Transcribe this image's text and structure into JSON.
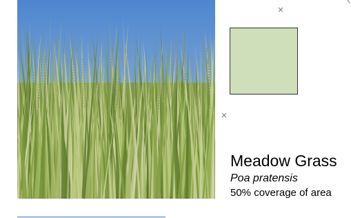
{
  "card": {
    "title": "Meadow Grass",
    "scientific_name": "Poa pratensis",
    "coverage": "50% coverage of area",
    "swatch_color": "#cfdfb9"
  }
}
